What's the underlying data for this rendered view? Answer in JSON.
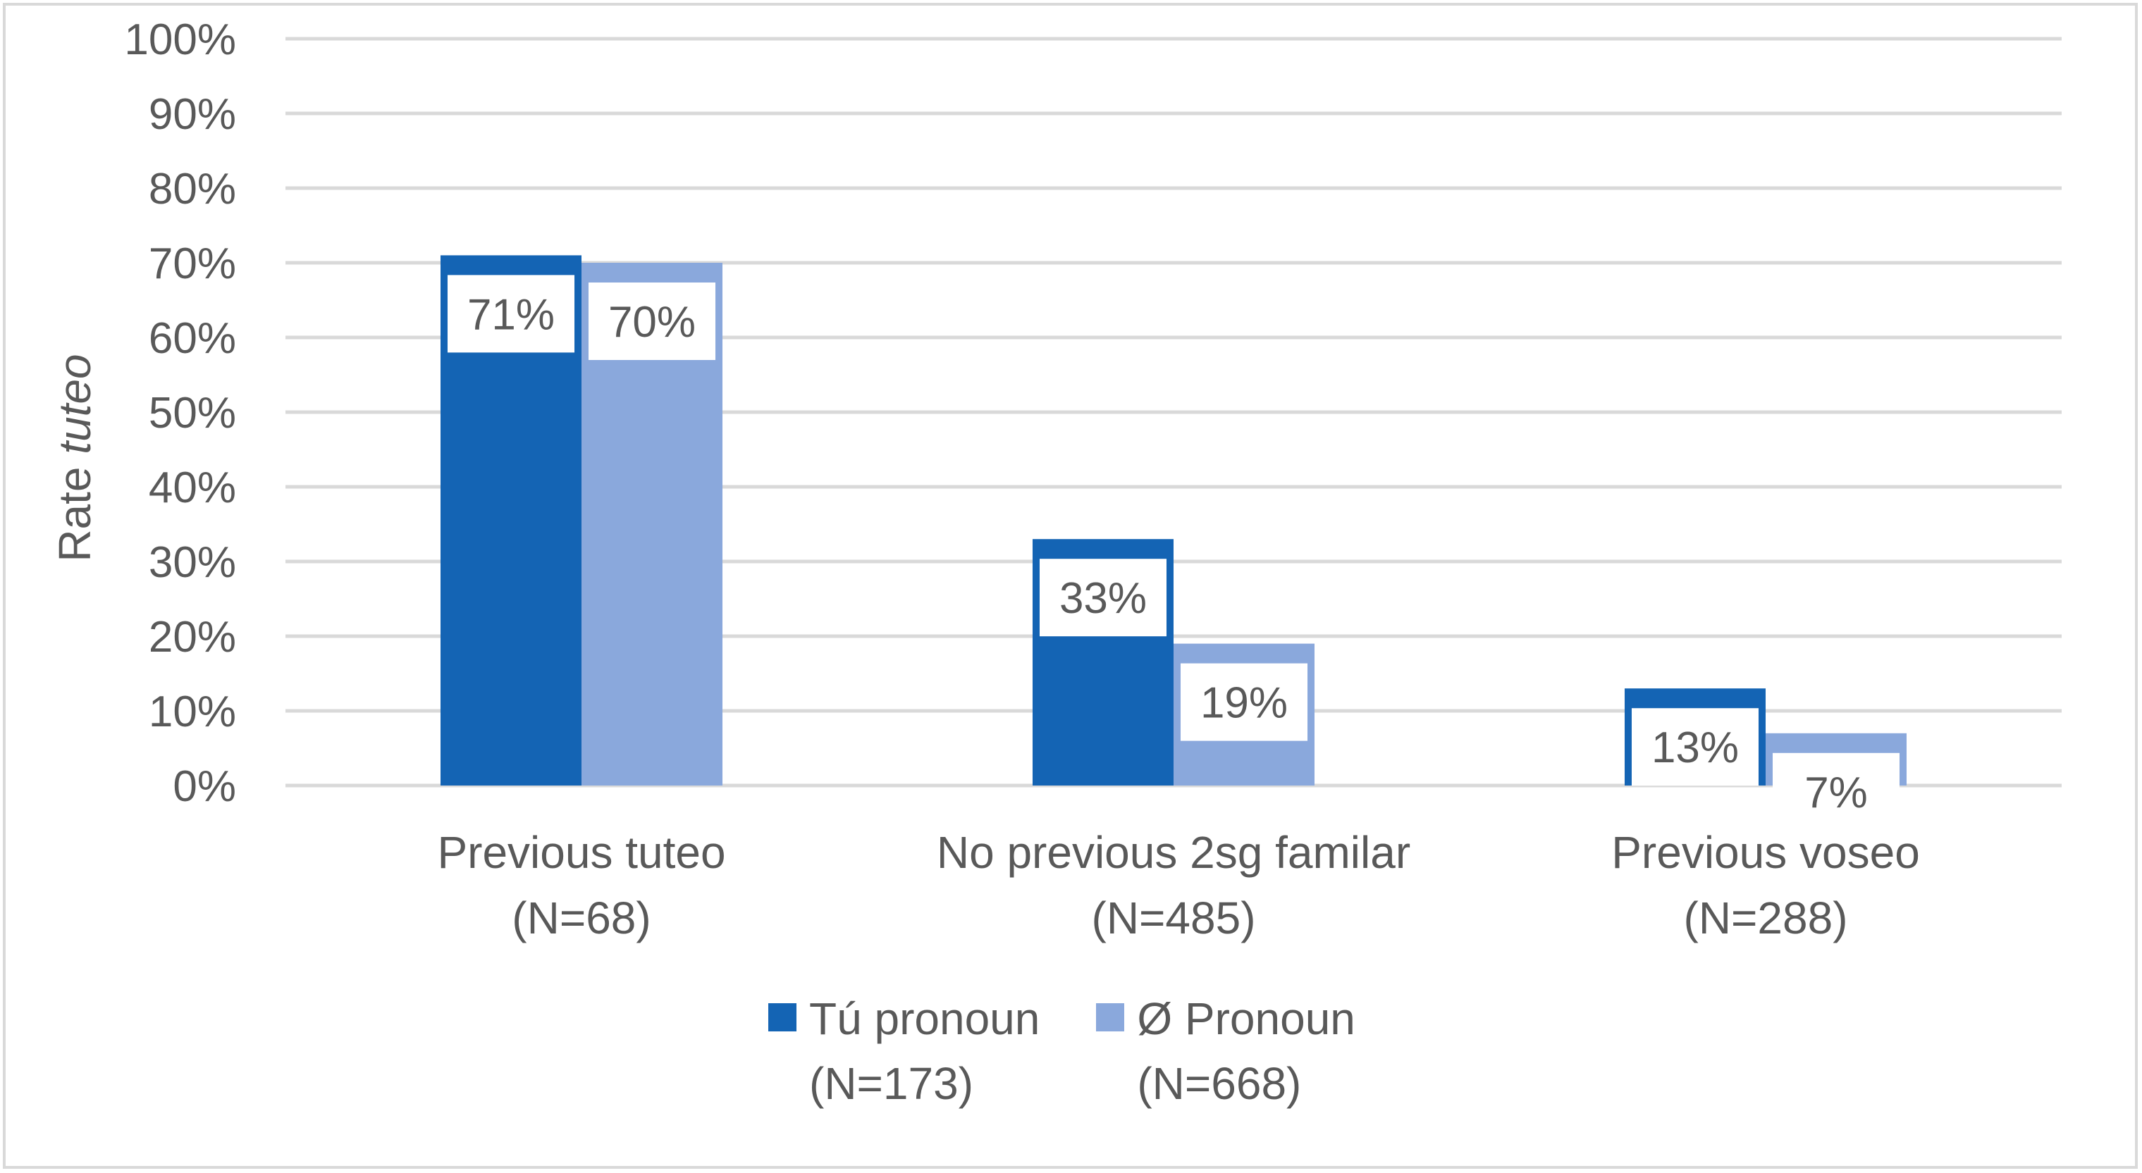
{
  "chart_data": {
    "type": "bar",
    "ylabel_prefix": "Rate ",
    "ylabel_italic": "tuteo",
    "ylim": [
      0,
      100
    ],
    "y_ticks": [
      "0%",
      "10%",
      "20%",
      "30%",
      "40%",
      "50%",
      "60%",
      "70%",
      "80%",
      "90%",
      "100%"
    ],
    "grid": true,
    "legend_position": "bottom",
    "categories": [
      {
        "line1": "Previous tuteo",
        "line2": "(N=68)"
      },
      {
        "line1": "No previous 2sg familar",
        "line2": "(N=485)"
      },
      {
        "line1": "Previous voseo",
        "line2": "(N=288)"
      }
    ],
    "series": [
      {
        "name": "Tú pronoun",
        "name_line2": "(N=173)",
        "color": "#1464b4",
        "values": [
          71,
          33,
          13
        ],
        "labels": [
          "71%",
          "33%",
          "13%"
        ]
      },
      {
        "name": "Ø Pronoun",
        "name_line2": "(N=668)",
        "color": "#8aa8dc",
        "values": [
          70,
          19,
          7
        ],
        "labels": [
          "70%",
          "19%",
          "7%"
        ]
      }
    ]
  },
  "colors": {
    "grid": "#d9d9d9",
    "text": "#595959",
    "frame": "#d9d9d9"
  }
}
